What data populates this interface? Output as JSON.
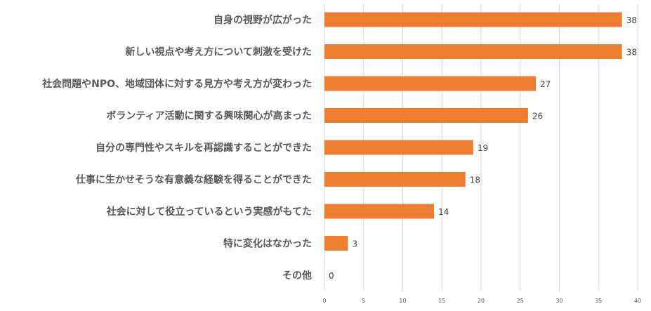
{
  "chart_data": {
    "type": "bar",
    "orientation": "horizontal",
    "categories": [
      "自身の視野が広がった",
      "新しい視点や考え方について刺激を受けた",
      "社会問題やNPO、地域団体に対する見方や考え方が変わった",
      "ボランティア活動に関する興味関心が高まった",
      "自分の専門性やスキルを再認識することができた",
      "仕事に生かせそうな有意義な経験を得ることができた",
      "社会に対して役立っているという実感がもてた",
      "特に変化はなかった",
      "その他"
    ],
    "values": [
      38,
      38,
      27,
      26,
      19,
      18,
      14,
      3,
      0
    ],
    "value_labels": [
      "38",
      "38",
      "27",
      "26",
      "19",
      "18",
      "14",
      "3",
      "0"
    ],
    "xlim": [
      0,
      40
    ],
    "x_ticks": [
      "0",
      "5",
      "10",
      "15",
      "20",
      "25",
      "30",
      "35",
      "40"
    ],
    "x_tick_values": [
      0,
      5,
      10,
      15,
      20,
      25,
      30,
      35,
      40
    ],
    "grid": true,
    "legend": "none",
    "bar_color": "#ED7D31",
    "grid_color": "#D9D9D9",
    "title": "",
    "xlabel": "",
    "ylabel": ""
  }
}
